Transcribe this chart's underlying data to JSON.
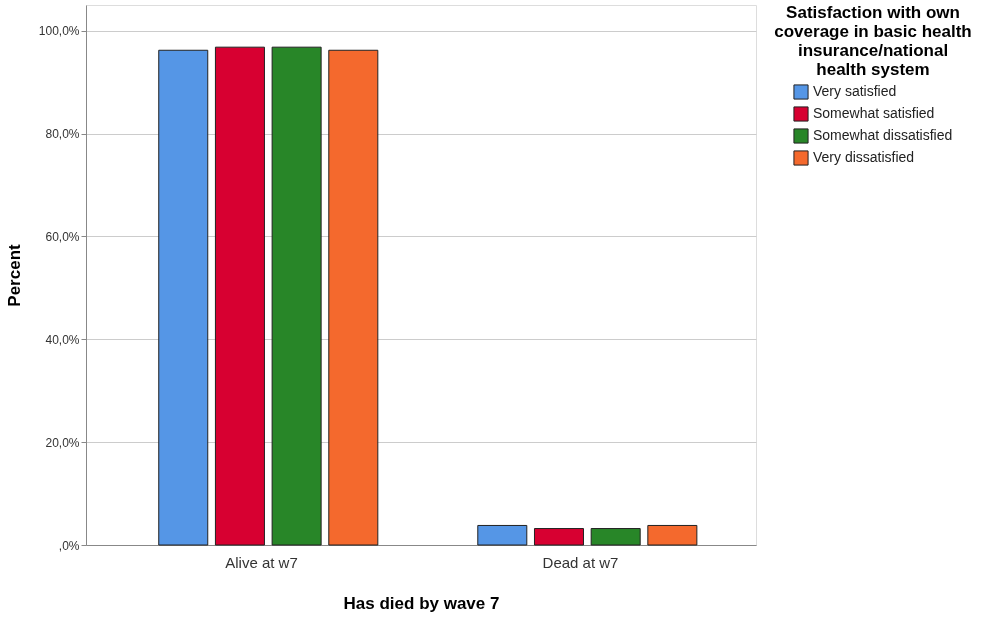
{
  "chart_data": {
    "type": "bar",
    "categories": [
      "Alive at w7",
      "Dead at w7"
    ],
    "xlabel": "Has died by wave 7",
    "ylabel": "Percent",
    "legend_title": "Satisfaction with own coverage in basic health insurance/national health system",
    "series": [
      {
        "name": "Very satisfied",
        "color": "#5596e6",
        "values": [
          96.2,
          3.8
        ]
      },
      {
        "name": "Somewhat satisfied",
        "color": "#d70031",
        "values": [
          96.8,
          3.2
        ]
      },
      {
        "name": "Somewhat dissatisfied",
        "color": "#288628",
        "values": [
          96.8,
          3.2
        ]
      },
      {
        "name": "Very dissatisfied",
        "color": "#f4692d",
        "values": [
          96.2,
          3.8
        ]
      }
    ],
    "ylim": [
      0,
      105
    ],
    "yticks": [
      {
        "value": 0,
        "label": ",0%"
      },
      {
        "value": 20,
        "label": "20,0%"
      },
      {
        "value": 40,
        "label": "40,0%"
      },
      {
        "value": 60,
        "label": "60,0%"
      },
      {
        "value": 80,
        "label": "80,0%"
      },
      {
        "value": 100,
        "label": "100,0%"
      }
    ],
    "grid": "y",
    "legend": "top right"
  }
}
